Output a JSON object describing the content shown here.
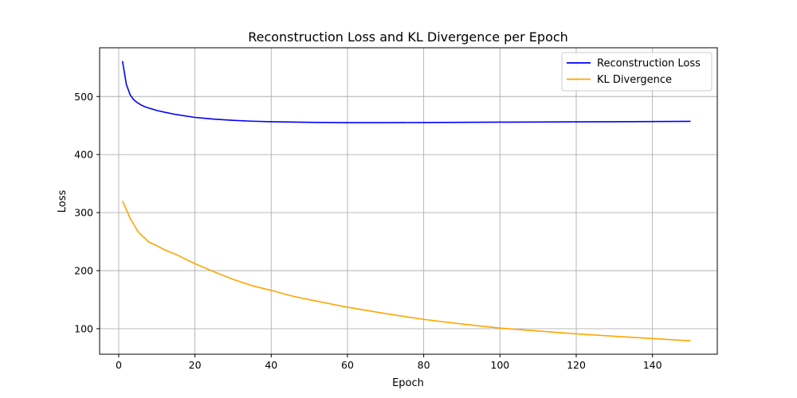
{
  "chart_data": {
    "type": "line",
    "title": "Reconstruction Loss and KL Divergence per Epoch",
    "xlabel": "Epoch",
    "ylabel": "Loss",
    "xlim": [
      -5,
      157
    ],
    "ylim": [
      56,
      584
    ],
    "xticks": [
      0,
      20,
      40,
      60,
      80,
      100,
      120,
      140
    ],
    "yticks": [
      100,
      200,
      300,
      400,
      500
    ],
    "grid": true,
    "legend_position": "top-right",
    "series": [
      {
        "name": "Reconstruction Loss",
        "color": "#0000ff",
        "x": [
          1,
          2,
          3,
          4,
          5,
          6,
          7,
          8,
          10,
          12,
          15,
          20,
          25,
          30,
          35,
          40,
          50,
          60,
          70,
          80,
          90,
          100,
          110,
          120,
          130,
          140,
          150
        ],
        "y": [
          561,
          521,
          503,
          494,
          489,
          485,
          482,
          480,
          476,
          473,
          469,
          464,
          461,
          459,
          457.5,
          456.5,
          455.5,
          455,
          455,
          455.2,
          455.5,
          455.8,
          456,
          456.3,
          456.6,
          456.9,
          457.2
        ]
      },
      {
        "name": "KL Divergence",
        "color": "#ffa500",
        "x": [
          1,
          2,
          3,
          4,
          5,
          6,
          7,
          8,
          10,
          12,
          15,
          20,
          25,
          30,
          35,
          40,
          45,
          50,
          60,
          70,
          80,
          90,
          100,
          110,
          120,
          130,
          140,
          150
        ],
        "y": [
          320,
          305,
          290,
          279,
          268,
          261,
          255,
          249,
          243,
          236,
          228,
          212,
          198,
          185,
          174,
          166,
          157,
          150,
          137,
          126,
          116,
          108,
          101,
          96,
          91,
          87,
          83,
          79
        ]
      }
    ]
  }
}
